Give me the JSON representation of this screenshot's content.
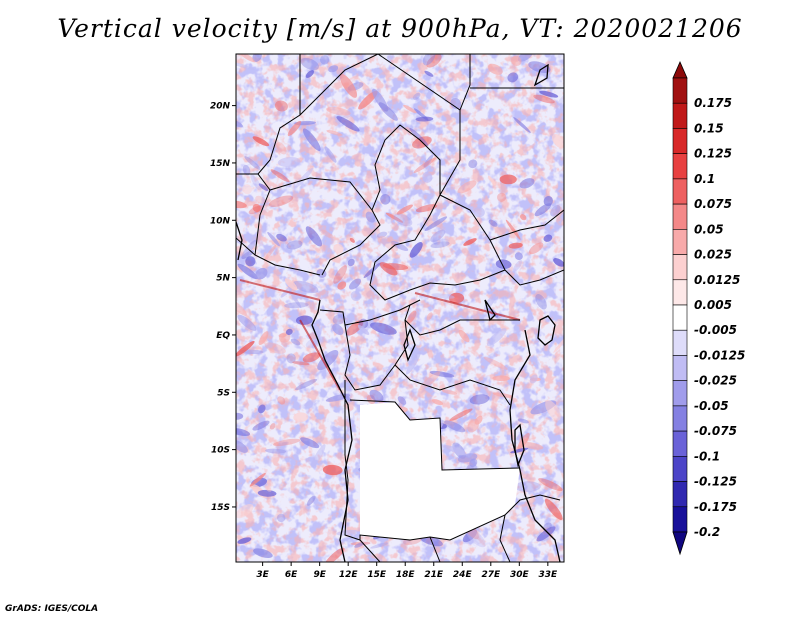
{
  "title": "Vertical velocity [m/s] at 900hPa, VT: 2020021206",
  "credit": "GrADS: IGES/COLA",
  "chart_data": {
    "type": "heatmap",
    "variable": "Vertical velocity",
    "units": "m/s",
    "level": "900hPa",
    "valid_time": "2020021206",
    "x_ticks": [
      "3E",
      "6E",
      "9E",
      "12E",
      "15E",
      "18E",
      "21E",
      "24E",
      "27E",
      "30E",
      "33E"
    ],
    "x_tick_values": [
      3,
      6,
      9,
      12,
      15,
      18,
      21,
      24,
      27,
      30,
      33
    ],
    "y_ticks": [
      "20N",
      "15N",
      "10N",
      "5N",
      "EQ",
      "5S",
      "10S",
      "15S"
    ],
    "y_tick_values": [
      20,
      15,
      10,
      5,
      0,
      -5,
      -10,
      -15
    ],
    "lon_range": [
      0.2,
      34.7
    ],
    "lat_range": [
      -19.8,
      24.5
    ],
    "colorbar_levels": [
      "0.175",
      "0.15",
      "0.125",
      "0.1",
      "0.075",
      "0.05",
      "0.025",
      "0.0125",
      "0.005",
      "-0.005",
      "-0.0125",
      "-0.025",
      "-0.05",
      "-0.075",
      "-0.1",
      "-0.125",
      "-0.175",
      "-0.2"
    ],
    "colorbar_colors": [
      "#a01010",
      "#c01818",
      "#d82828",
      "#e84040",
      "#ee6060",
      "#f48888",
      "#f8aaaa",
      "#fcd0d0",
      "#fde8e8",
      "#ffffff",
      "#dedcfa",
      "#c0bcf4",
      "#a09ceb",
      "#8480e2",
      "#6a62d8",
      "#4c44c8",
      "#3028b0",
      "#18109a"
    ],
    "colorbar_top_color": "#8c0a0a",
    "colorbar_bottom_color": "#100680"
  }
}
